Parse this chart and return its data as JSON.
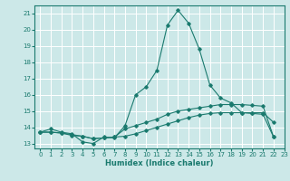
{
  "title": "",
  "xlabel": "Humidex (Indice chaleur)",
  "ylabel": "",
  "background_color": "#cce8e8",
  "grid_color": "#ffffff",
  "line_color": "#1a7a6e",
  "xlim": [
    -0.5,
    23
  ],
  "ylim": [
    12.7,
    21.5
  ],
  "yticks": [
    13,
    14,
    15,
    16,
    17,
    18,
    19,
    20,
    21
  ],
  "xticks": [
    0,
    1,
    2,
    3,
    4,
    5,
    6,
    7,
    8,
    9,
    10,
    11,
    12,
    13,
    14,
    15,
    16,
    17,
    18,
    19,
    20,
    21,
    22,
    23
  ],
  "series": [
    {
      "x": [
        0,
        1,
        2,
        3,
        4,
        5,
        6,
        7,
        8,
        9,
        10,
        11,
        12,
        13,
        14,
        15,
        16,
        17,
        18,
        19,
        20,
        21,
        22
      ],
      "y": [
        13.7,
        13.9,
        13.7,
        13.6,
        13.1,
        13.0,
        13.4,
        13.35,
        14.1,
        16.0,
        16.5,
        17.5,
        20.3,
        21.2,
        20.4,
        18.8,
        16.6,
        15.8,
        15.5,
        14.9,
        14.9,
        14.9,
        14.3
      ]
    },
    {
      "x": [
        0,
        1,
        2,
        3,
        4,
        5,
        6,
        7,
        8,
        9,
        10,
        11,
        12,
        13,
        14,
        15,
        16,
        17,
        18,
        19,
        20,
        21,
        22
      ],
      "y": [
        13.7,
        13.7,
        13.65,
        13.5,
        13.45,
        13.3,
        13.35,
        13.4,
        13.45,
        13.6,
        13.8,
        14.0,
        14.2,
        14.4,
        14.6,
        14.75,
        14.85,
        14.9,
        14.9,
        14.9,
        14.85,
        14.8,
        13.4
      ]
    },
    {
      "x": [
        0,
        1,
        2,
        3,
        4,
        5,
        6,
        7,
        8,
        9,
        10,
        11,
        12,
        13,
        14,
        15,
        16,
        17,
        18,
        19,
        20,
        21,
        22
      ],
      "y": [
        13.7,
        13.7,
        13.65,
        13.55,
        13.45,
        13.3,
        13.35,
        13.4,
        13.9,
        14.1,
        14.3,
        14.5,
        14.8,
        15.0,
        15.1,
        15.2,
        15.3,
        15.4,
        15.4,
        15.4,
        15.35,
        15.3,
        13.4
      ]
    }
  ]
}
